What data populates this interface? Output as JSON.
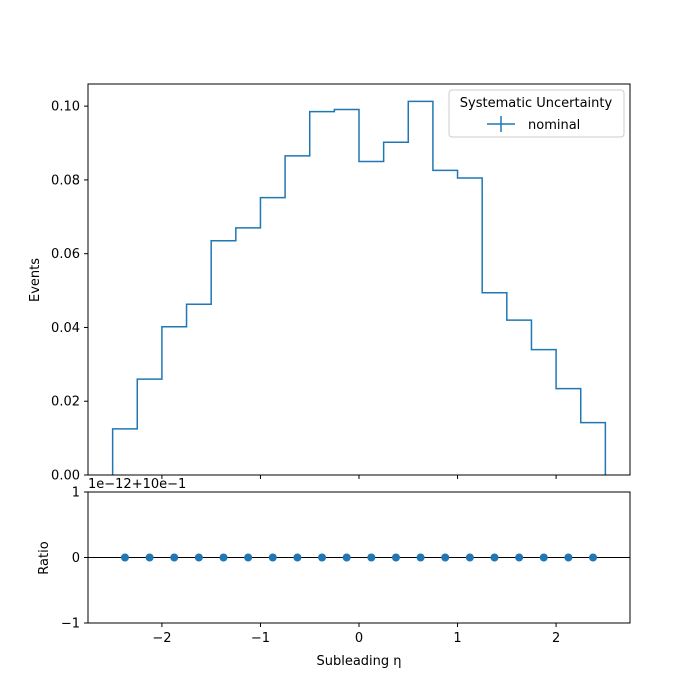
{
  "chart_data": [
    {
      "type": "line",
      "drawstyle": "steps",
      "ylabel": "Events",
      "ylim": [
        0,
        0.106
      ],
      "xlim": [
        -2.75,
        2.75
      ],
      "yticks": [
        "0.00",
        "0.02",
        "0.04",
        "0.06",
        "0.08",
        "0.10"
      ],
      "bin_edges": [
        -2.5,
        -2.25,
        -2.0,
        -1.75,
        -1.5,
        -1.25,
        -1.0,
        -0.75,
        -0.5,
        -0.25,
        0.0,
        0.25,
        0.5,
        0.75,
        1.0,
        1.25,
        1.5,
        1.75,
        2.0,
        2.25,
        2.5
      ],
      "series": [
        {
          "name": "nominal",
          "color": "#1f77b4",
          "values": [
            0.0125,
            0.026,
            0.0402,
            0.0463,
            0.0635,
            0.067,
            0.0752,
            0.0865,
            0.0985,
            0.0991,
            0.085,
            0.0902,
            0.1013,
            0.0826,
            0.0805,
            0.0494,
            0.042,
            0.034,
            0.0234,
            0.0142
          ]
        }
      ],
      "legend": {
        "title": "Systematic Uncertainty",
        "location": "top-right"
      }
    },
    {
      "type": "scatter",
      "xlabel": "Subleading η",
      "ylabel": "Ratio",
      "offset_text": "1e−12+10e−1",
      "ylim": [
        -1,
        1
      ],
      "xlim": [
        -2.75,
        2.75
      ],
      "yticks": [
        "−1",
        "0",
        "1"
      ],
      "xticks": [
        "−2",
        "−1",
        "0",
        "1",
        "2"
      ],
      "x": [
        -2.375,
        -2.125,
        -1.875,
        -1.625,
        -1.375,
        -1.125,
        -0.875,
        -0.625,
        -0.375,
        -0.125,
        0.125,
        0.375,
        0.625,
        0.875,
        1.125,
        1.375,
        1.625,
        1.875,
        2.125,
        2.375
      ],
      "y": [
        0,
        0,
        0,
        0,
        0,
        0,
        0,
        0,
        0,
        0,
        0,
        0,
        0,
        0,
        0,
        0,
        0,
        0,
        0,
        0
      ],
      "reference_line": 0,
      "color": "#1f77b4"
    }
  ]
}
